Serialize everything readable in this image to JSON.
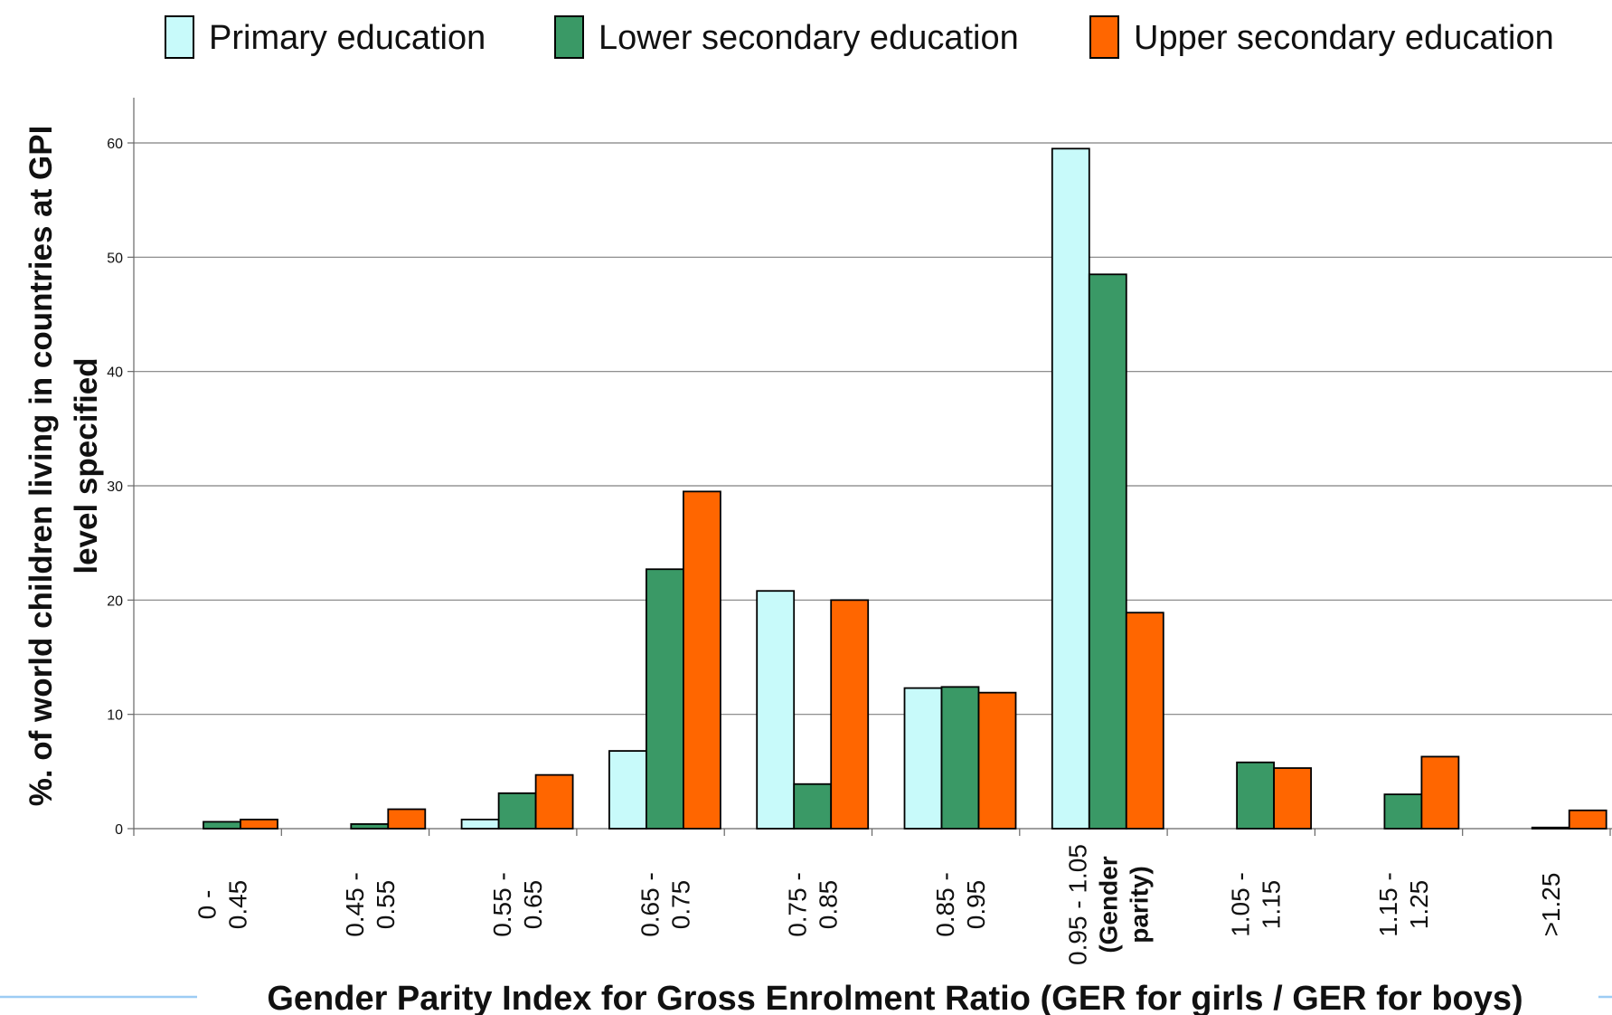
{
  "chart_data": {
    "type": "bar",
    "legend_position": "top",
    "grid": true,
    "xlabel": "Gender Parity Index for Gross Enrolment Ratio (GER for girls / GER for boys)",
    "ylabel": "%. of world children living in countries at GPI level specified",
    "ylim": [
      0,
      63
    ],
    "yticks": [
      "0",
      "10",
      "20",
      "30",
      "40",
      "50",
      "60"
    ],
    "categories": [
      "0 - 0.45",
      "0.45 - 0.55",
      "0.55 - 0.65",
      "0.65 - 0.75",
      "0.75 - 0.85",
      "0.85 - 0.95",
      "0.95 - 1.05 (Gender parity)",
      "1.05 - 1.15",
      "1.15 - 1.25",
      ">1.25"
    ],
    "series": [
      {
        "name": "Primary education",
        "color": "#C8FAFA",
        "values": [
          0,
          0,
          0.8,
          6.8,
          20.8,
          12.3,
          59.5,
          0,
          0,
          0
        ]
      },
      {
        "name": "Lower secondary education",
        "color": "#3A9966",
        "values": [
          0.6,
          0.4,
          3.1,
          22.7,
          3.9,
          12.4,
          48.5,
          5.8,
          3.0,
          0.1
        ]
      },
      {
        "name": "Upper secondary education",
        "color": "#FF6600",
        "values": [
          0.8,
          1.7,
          4.7,
          29.5,
          20.0,
          11.9,
          18.9,
          5.3,
          6.3,
          1.6
        ]
      }
    ]
  }
}
